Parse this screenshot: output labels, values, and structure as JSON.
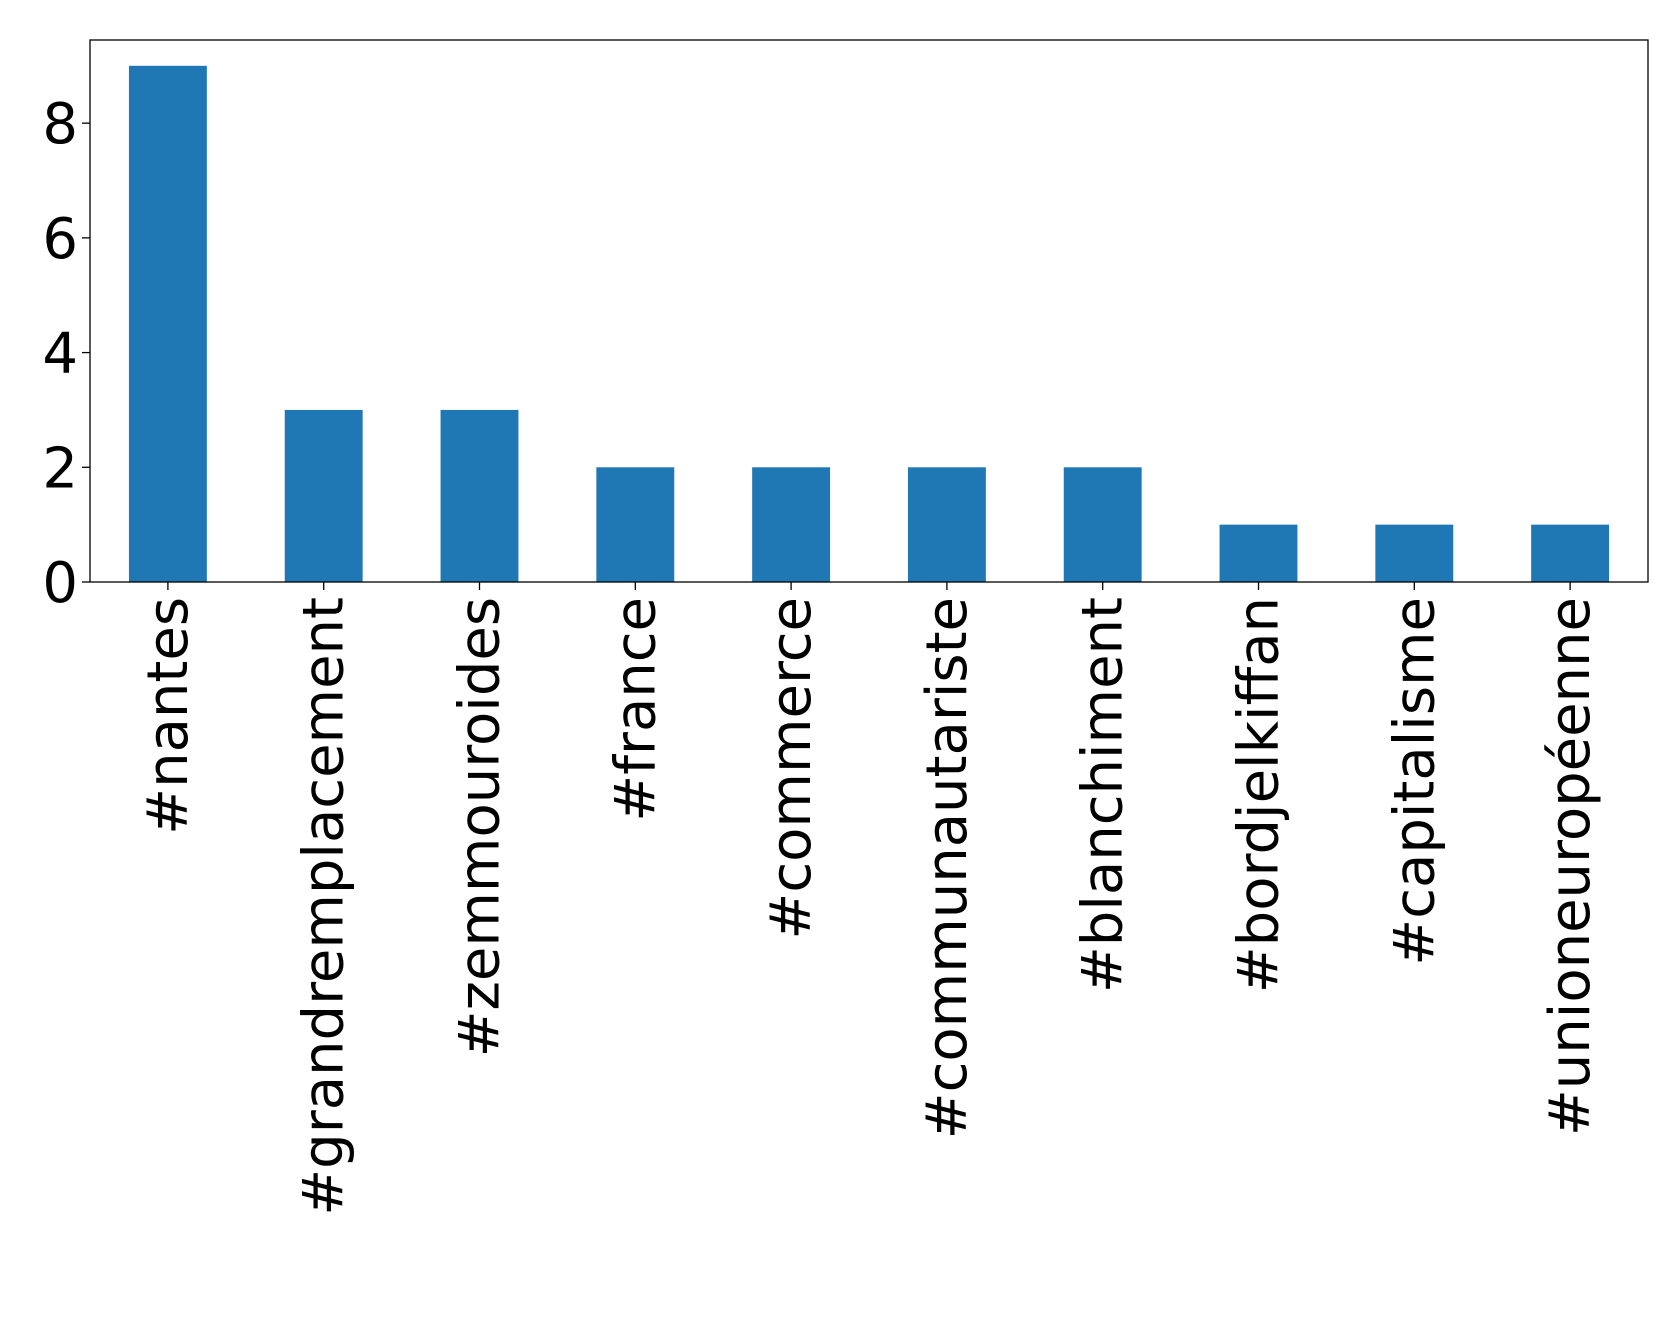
{
  "chart_data": {
    "type": "bar",
    "title": "",
    "xlabel": "",
    "ylabel": "",
    "categories": [
      "#nantes",
      "#grandremplacement",
      "#zemmouroides",
      "#france",
      "#commerce",
      "#communautariste",
      "#blanchiment",
      "#bordjelkiffan",
      "#capitalisme",
      "#unioneuropéenne"
    ],
    "values": [
      9,
      3,
      3,
      2,
      2,
      2,
      2,
      1,
      1,
      1
    ],
    "ylim": [
      0,
      9.45
    ],
    "yticks": [
      0,
      2,
      4,
      6,
      8
    ],
    "bar_color": "#1f77b4",
    "grid": false,
    "legend": "none"
  }
}
